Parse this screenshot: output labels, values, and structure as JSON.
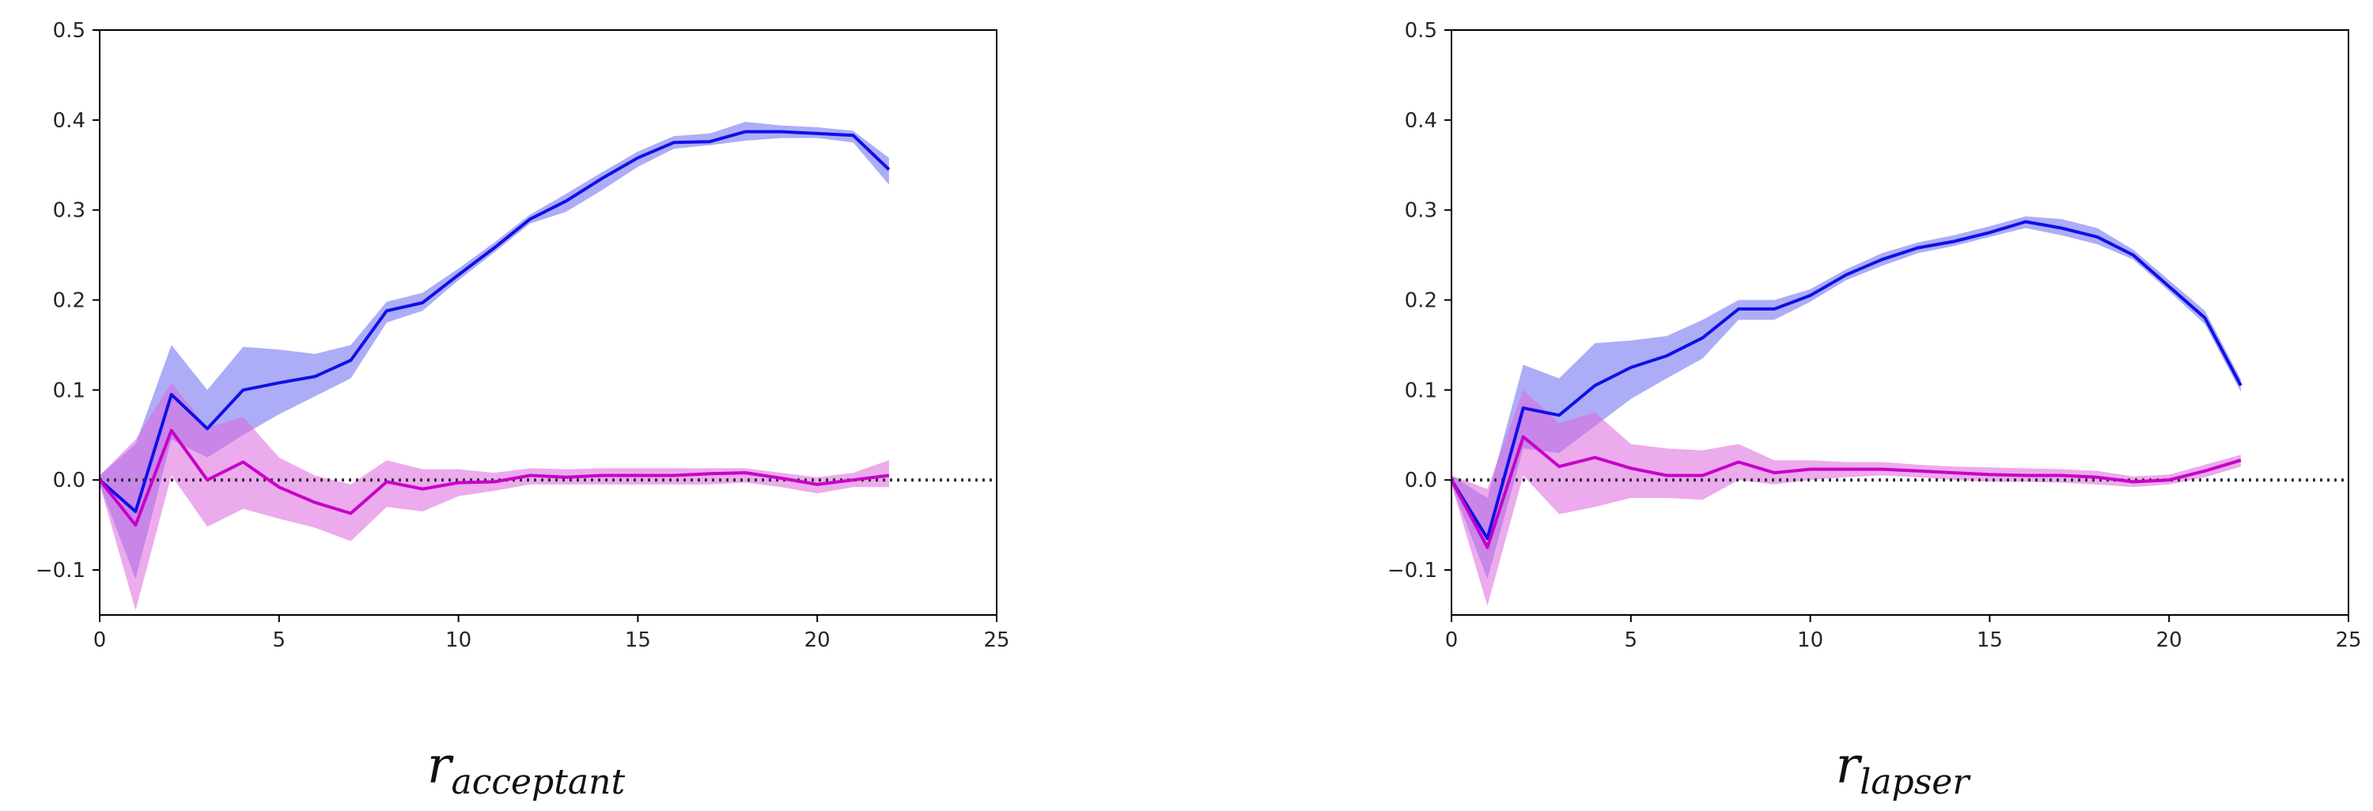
{
  "chart_data": [
    {
      "type": "line",
      "title": "",
      "xlabel": "",
      "ylabel": "",
      "xlim": [
        0,
        25
      ],
      "ylim": [
        -0.15,
        0.5
      ],
      "xticks": [
        0,
        5,
        10,
        15,
        20,
        25
      ],
      "yticks": [
        -0.1,
        0.0,
        0.1,
        0.2,
        0.3,
        0.4,
        0.5
      ],
      "ytick_labels": [
        "−0.1",
        "0.0",
        "0.1",
        "0.2",
        "0.3",
        "0.4",
        "0.5"
      ],
      "reference_line": {
        "y": 0.0,
        "style": "dotted",
        "color": "#333333"
      },
      "caption_base": "r",
      "caption_sub": "acceptant",
      "series": [
        {
          "name": "blue",
          "color": "#1010e8",
          "band_color": "#6a6af0",
          "x": [
            0,
            1,
            2,
            3,
            4,
            5,
            6,
            7,
            8,
            9,
            10,
            11,
            12,
            13,
            14,
            15,
            16,
            17,
            18,
            19,
            20,
            21,
            22
          ],
          "values": [
            0.0,
            -0.035,
            0.095,
            0.057,
            0.1,
            0.108,
            0.115,
            0.133,
            0.188,
            0.197,
            0.228,
            0.258,
            0.29,
            0.31,
            0.335,
            0.358,
            0.375,
            0.376,
            0.387,
            0.387,
            0.385,
            0.383,
            0.345
          ],
          "lower": [
            -0.005,
            -0.11,
            0.045,
            0.025,
            0.05,
            0.073,
            0.093,
            0.113,
            0.175,
            0.188,
            0.222,
            0.253,
            0.285,
            0.298,
            0.322,
            0.348,
            0.368,
            0.372,
            0.377,
            0.38,
            0.38,
            0.375,
            0.328
          ],
          "upper": [
            0.005,
            0.04,
            0.15,
            0.1,
            0.148,
            0.145,
            0.14,
            0.15,
            0.198,
            0.208,
            0.235,
            0.264,
            0.295,
            0.318,
            0.342,
            0.365,
            0.382,
            0.385,
            0.398,
            0.394,
            0.392,
            0.388,
            0.358
          ]
        },
        {
          "name": "magenta",
          "color": "#c800c8",
          "band_color": "#dd66dd",
          "x": [
            0,
            1,
            2,
            3,
            4,
            5,
            6,
            7,
            8,
            9,
            10,
            11,
            12,
            13,
            14,
            15,
            16,
            17,
            18,
            19,
            20,
            21,
            22
          ],
          "values": [
            0.0,
            -0.05,
            0.055,
            0.0,
            0.02,
            -0.008,
            -0.025,
            -0.037,
            -0.002,
            -0.01,
            -0.003,
            -0.002,
            0.005,
            0.003,
            0.005,
            0.005,
            0.005,
            0.007,
            0.008,
            0.002,
            -0.005,
            0.0,
            0.005
          ],
          "lower": [
            -0.005,
            -0.145,
            0.005,
            -0.052,
            -0.032,
            -0.043,
            -0.053,
            -0.068,
            -0.03,
            -0.035,
            -0.018,
            -0.012,
            -0.005,
            -0.005,
            -0.005,
            -0.005,
            -0.005,
            -0.005,
            -0.003,
            -0.008,
            -0.015,
            -0.008,
            -0.008
          ],
          "upper": [
            0.005,
            0.045,
            0.108,
            0.058,
            0.07,
            0.025,
            0.005,
            -0.005,
            0.022,
            0.012,
            0.012,
            0.008,
            0.013,
            0.012,
            0.013,
            0.013,
            0.013,
            0.013,
            0.013,
            0.008,
            0.003,
            0.008,
            0.022
          ]
        }
      ]
    },
    {
      "type": "line",
      "title": "",
      "xlabel": "",
      "ylabel": "",
      "xlim": [
        0,
        25
      ],
      "ylim": [
        -0.15,
        0.5
      ],
      "xticks": [
        0,
        5,
        10,
        15,
        20,
        25
      ],
      "yticks": [
        -0.1,
        0.0,
        0.1,
        0.2,
        0.3,
        0.4,
        0.5
      ],
      "ytick_labels": [
        "−0.1",
        "0.0",
        "0.1",
        "0.2",
        "0.3",
        "0.4",
        "0.5"
      ],
      "reference_line": {
        "y": 0.0,
        "style": "dotted",
        "color": "#333333"
      },
      "caption_base": "r",
      "caption_sub": "lapser",
      "series": [
        {
          "name": "blue",
          "color": "#1010e8",
          "band_color": "#6a6af0",
          "x": [
            0,
            1,
            2,
            3,
            4,
            5,
            6,
            7,
            8,
            9,
            10,
            11,
            12,
            13,
            14,
            15,
            16,
            17,
            18,
            19,
            20,
            21,
            22
          ],
          "values": [
            0.0,
            -0.065,
            0.08,
            0.072,
            0.105,
            0.125,
            0.138,
            0.158,
            0.19,
            0.19,
            0.205,
            0.228,
            0.245,
            0.258,
            0.265,
            0.275,
            0.287,
            0.28,
            0.27,
            0.25,
            0.215,
            0.18,
            0.105
          ],
          "lower": [
            -0.005,
            -0.11,
            0.035,
            0.03,
            0.06,
            0.09,
            0.113,
            0.135,
            0.178,
            0.178,
            0.198,
            0.222,
            0.238,
            0.252,
            0.26,
            0.27,
            0.28,
            0.272,
            0.262,
            0.245,
            0.21,
            0.173,
            0.098
          ],
          "upper": [
            0.005,
            -0.02,
            0.128,
            0.113,
            0.152,
            0.155,
            0.16,
            0.178,
            0.2,
            0.2,
            0.212,
            0.234,
            0.252,
            0.264,
            0.272,
            0.282,
            0.293,
            0.29,
            0.28,
            0.256,
            0.222,
            0.188,
            0.112
          ]
        },
        {
          "name": "magenta",
          "color": "#c800c8",
          "band_color": "#dd66dd",
          "x": [
            0,
            1,
            2,
            3,
            4,
            5,
            6,
            7,
            8,
            9,
            10,
            11,
            12,
            13,
            14,
            15,
            16,
            17,
            18,
            19,
            20,
            21,
            22
          ],
          "values": [
            0.0,
            -0.075,
            0.048,
            0.015,
            0.025,
            0.013,
            0.005,
            0.005,
            0.02,
            0.008,
            0.012,
            0.012,
            0.012,
            0.01,
            0.008,
            0.006,
            0.005,
            0.005,
            0.003,
            -0.002,
            0.0,
            0.01,
            0.022
          ],
          "lower": [
            -0.005,
            -0.14,
            0.005,
            -0.038,
            -0.03,
            -0.02,
            -0.02,
            -0.022,
            0.0,
            -0.005,
            0.0,
            0.003,
            0.005,
            0.003,
            0.0,
            -0.002,
            -0.002,
            -0.003,
            -0.005,
            -0.008,
            -0.005,
            0.003,
            0.015
          ],
          "upper": [
            0.005,
            -0.01,
            0.1,
            0.063,
            0.075,
            0.04,
            0.035,
            0.033,
            0.04,
            0.022,
            0.022,
            0.02,
            0.02,
            0.017,
            0.015,
            0.014,
            0.013,
            0.012,
            0.01,
            0.004,
            0.006,
            0.017,
            0.028
          ]
        }
      ]
    }
  ]
}
